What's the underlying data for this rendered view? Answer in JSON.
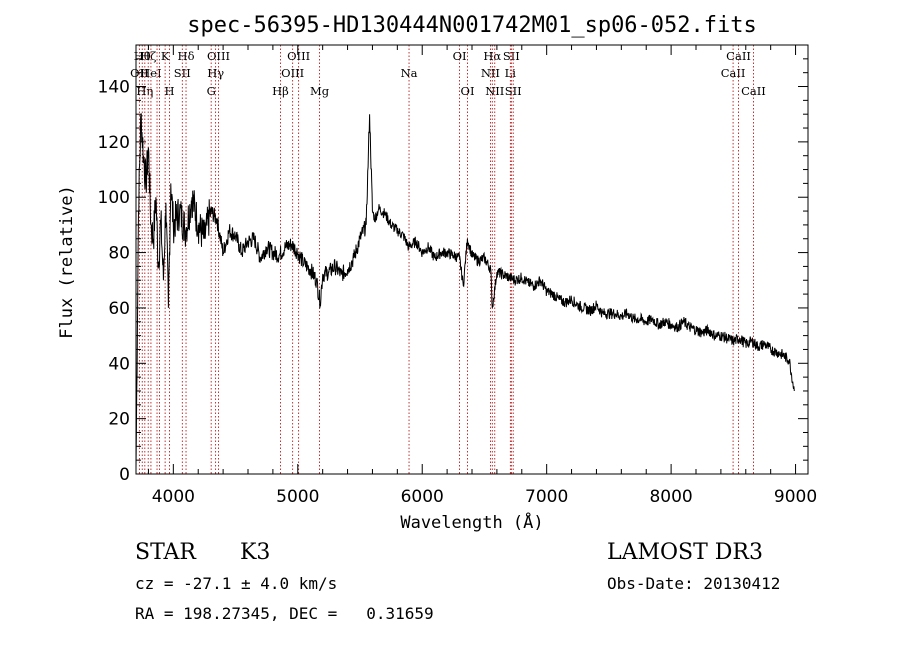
{
  "chart_data": {
    "type": "line",
    "title": "spec-56395-HD130444N001742M01_sp06-052.fits",
    "xlabel": "Wavelength (Å)",
    "ylabel": "Flux (relative)",
    "xlim": [
      3700,
      9100
    ],
    "ylim": [
      0,
      155
    ],
    "xticks": [
      4000,
      5000,
      6000,
      7000,
      8000,
      9000
    ],
    "yticks": [
      0,
      20,
      40,
      60,
      80,
      100,
      120,
      140
    ],
    "grid": false,
    "series": [
      {
        "x": [
          3700,
          3720,
          3740,
          3760,
          3780,
          3800,
          3820,
          3840,
          3860,
          3880,
          3900,
          3920,
          3940,
          3960,
          3980,
          4000,
          4050,
          4100,
          4150,
          4200,
          4250,
          4300,
          4350,
          4400,
          4450,
          4500,
          4550,
          4600,
          4650,
          4700,
          4750,
          4800,
          4850,
          4900,
          4950,
          5000,
          5050,
          5100,
          5150,
          5180,
          5200,
          5250,
          5300,
          5350,
          5400,
          5450,
          5500,
          5550,
          5577,
          5600,
          5620,
          5650,
          5700,
          5750,
          5800,
          5850,
          5890,
          5950,
          6000,
          6050,
          6100,
          6150,
          6200,
          6250,
          6300,
          6330,
          6363,
          6400,
          6450,
          6500,
          6550,
          6563,
          6600,
          6650,
          6700,
          6750,
          6800,
          6850,
          6900,
          6950,
          7000,
          7050,
          7100,
          7150,
          7200,
          7250,
          7300,
          7350,
          7400,
          7450,
          7500,
          7550,
          7600,
          7650,
          7700,
          7750,
          7800,
          7850,
          7900,
          7950,
          8000,
          8050,
          8100,
          8150,
          8200,
          8250,
          8300,
          8350,
          8400,
          8450,
          8500,
          8550,
          8600,
          8650,
          8700,
          8750,
          8800,
          8850,
          8900,
          8950,
          8990
        ],
        "y": [
          2,
          95,
          130,
          115,
          105,
          118,
          90,
          85,
          100,
          75,
          92,
          70,
          98,
          60,
          105,
          90,
          95,
          88,
          100,
          90,
          85,
          95,
          92,
          80,
          88,
          86,
          80,
          84,
          85,
          78,
          82,
          80,
          79,
          82,
          83,
          80,
          76,
          74,
          70,
          62,
          72,
          73,
          75,
          72,
          74,
          78,
          85,
          90,
          130,
          95,
          92,
          96,
          94,
          90,
          88,
          86,
          82,
          84,
          80,
          82,
          78,
          80,
          80,
          79,
          78,
          68,
          85,
          79,
          77,
          78,
          74,
          60,
          73,
          72,
          71,
          70,
          71,
          69,
          68,
          70,
          66,
          65,
          63,
          62,
          63,
          61,
          60,
          59,
          61,
          58,
          58,
          58,
          57,
          58,
          56,
          56,
          55,
          56,
          54,
          55,
          54,
          53,
          55,
          53,
          52,
          51,
          52,
          50,
          50,
          49,
          48,
          49,
          47,
          48,
          46,
          47,
          45,
          44,
          43,
          41,
          30
        ]
      }
    ],
    "lines": [
      {
        "wl": 3727,
        "label": "OII",
        "row": 1
      },
      {
        "wl": 3750,
        "label": "Hθ",
        "row": 0
      },
      {
        "wl": 3771,
        "label": "Hη",
        "row": 2
      },
      {
        "wl": 3798,
        "label": "Hζ",
        "row": 0
      },
      {
        "wl": 3820,
        "label": "HeI",
        "row": 1
      },
      {
        "wl": 3869,
        "label": "",
        "row": 0
      },
      {
        "wl": 3889,
        "label": "",
        "row": 0
      },
      {
        "wl": 3934,
        "label": "K",
        "row": 0
      },
      {
        "wl": 3969,
        "label": "H",
        "row": 2
      },
      {
        "wl": 4072,
        "label": "SII",
        "row": 1
      },
      {
        "wl": 4102,
        "label": "Hδ",
        "row": 0
      },
      {
        "wl": 4304,
        "label": "G",
        "row": 2
      },
      {
        "wl": 4340,
        "label": "Hγ",
        "row": 1
      },
      {
        "wl": 4363,
        "label": "OIII",
        "row": 0
      },
      {
        "wl": 4861,
        "label": "Hβ",
        "row": 2
      },
      {
        "wl": 4959,
        "label": "OIII",
        "row": 1
      },
      {
        "wl": 5007,
        "label": "OIII",
        "row": 0
      },
      {
        "wl": 5175,
        "label": "Mg",
        "row": 2
      },
      {
        "wl": 5894,
        "label": "Na",
        "row": 1
      },
      {
        "wl": 6300,
        "label": "OI",
        "row": 0
      },
      {
        "wl": 6364,
        "label": "OI",
        "row": 2
      },
      {
        "wl": 6548,
        "label": "NII",
        "row": 1
      },
      {
        "wl": 6563,
        "label": "Hα",
        "row": 0
      },
      {
        "wl": 6583,
        "label": "NII",
        "row": 2
      },
      {
        "wl": 6708,
        "label": "Li",
        "row": 1
      },
      {
        "wl": 6716,
        "label": "SII",
        "row": 0
      },
      {
        "wl": 6731,
        "label": "SII",
        "row": 2
      },
      {
        "wl": 8498,
        "label": "CaII",
        "row": 1
      },
      {
        "wl": 8542,
        "label": "CaII",
        "row": 0
      },
      {
        "wl": 8662,
        "label": "CaII",
        "row": 2
      }
    ]
  },
  "info": {
    "class_label": "STAR",
    "subclass": "K3",
    "survey": "LAMOST DR3",
    "cz": "cz = -27.1 ± 4.0 km/s",
    "obs_date": "Obs-Date: 20130412",
    "radec": "RA = 198.27345, DEC =   0.31659"
  }
}
